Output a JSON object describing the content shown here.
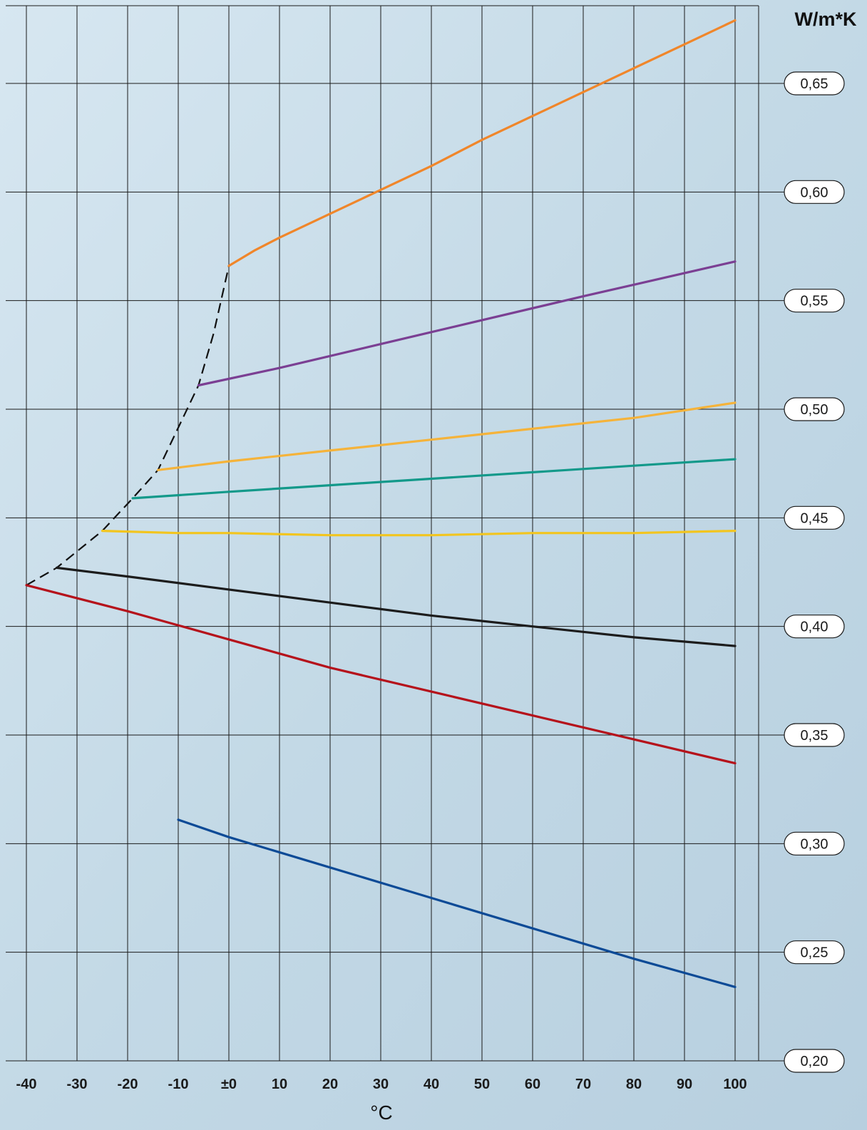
{
  "chart_data": {
    "type": "line",
    "title": "",
    "xlabel": "°C",
    "ylabel": "W/m*K",
    "xlim": [
      -40,
      100
    ],
    "ylim": [
      0.2,
      0.68
    ],
    "grid": true,
    "x_ticks": [
      -40,
      -30,
      -20,
      -10,
      0,
      10,
      20,
      30,
      40,
      50,
      60,
      70,
      80,
      90,
      100
    ],
    "x_tick_labels": [
      "-40",
      "-30",
      "-20",
      "-10",
      "±0",
      "10",
      "20",
      "30",
      "40",
      "50",
      "60",
      "70",
      "80",
      "90",
      "100"
    ],
    "y_ticks": [
      0.2,
      0.25,
      0.3,
      0.35,
      0.4,
      0.45,
      0.5,
      0.55,
      0.6,
      0.65
    ],
    "y_tick_labels": [
      "0,20",
      "0,25",
      "0,30",
      "0,35",
      "0,40",
      "0,45",
      "0,50",
      "0,55",
      "0,60",
      "0,65"
    ],
    "series": [
      {
        "color": "#f0862a",
        "points": [
          [
            0,
            0.566
          ],
          [
            5,
            0.573
          ],
          [
            10,
            0.579
          ],
          [
            20,
            0.59
          ],
          [
            30,
            0.601
          ],
          [
            40,
            0.612
          ],
          [
            50,
            0.624
          ],
          [
            60,
            0.635
          ],
          [
            70,
            0.646
          ],
          [
            80,
            0.657
          ],
          [
            90,
            0.668
          ],
          [
            100,
            0.679
          ]
        ]
      },
      {
        "color": "#7b3f93",
        "points": [
          [
            -6,
            0.511
          ],
          [
            10,
            0.519
          ],
          [
            30,
            0.53
          ],
          [
            50,
            0.541
          ],
          [
            70,
            0.552
          ],
          [
            100,
            0.568
          ]
        ]
      },
      {
        "color": "#f5b33a",
        "points": [
          [
            -14,
            0.472
          ],
          [
            0,
            0.476
          ],
          [
            20,
            0.481
          ],
          [
            40,
            0.486
          ],
          [
            60,
            0.491
          ],
          [
            80,
            0.496
          ],
          [
            100,
            0.503
          ]
        ]
      },
      {
        "color": "#13998a",
        "points": [
          [
            -19,
            0.459
          ],
          [
            0,
            0.462
          ],
          [
            20,
            0.465
          ],
          [
            40,
            0.468
          ],
          [
            60,
            0.471
          ],
          [
            80,
            0.474
          ],
          [
            100,
            0.477
          ]
        ]
      },
      {
        "color": "#f2c51f",
        "points": [
          [
            -25,
            0.444
          ],
          [
            -10,
            0.443
          ],
          [
            0,
            0.443
          ],
          [
            20,
            0.442
          ],
          [
            40,
            0.442
          ],
          [
            60,
            0.443
          ],
          [
            80,
            0.443
          ],
          [
            100,
            0.444
          ]
        ]
      },
      {
        "color": "#1c1c1c",
        "points": [
          [
            -34,
            0.427
          ],
          [
            -20,
            0.423
          ],
          [
            0,
            0.417
          ],
          [
            20,
            0.411
          ],
          [
            40,
            0.405
          ],
          [
            60,
            0.4
          ],
          [
            80,
            0.395
          ],
          [
            100,
            0.391
          ]
        ]
      },
      {
        "color": "#b5121b",
        "points": [
          [
            -40,
            0.419
          ],
          [
            -20,
            0.407
          ],
          [
            0,
            0.394
          ],
          [
            20,
            0.381
          ],
          [
            40,
            0.37
          ],
          [
            60,
            0.359
          ],
          [
            80,
            0.348
          ],
          [
            100,
            0.337
          ]
        ]
      },
      {
        "color": "#0c4a96",
        "points": [
          [
            -10,
            0.311
          ],
          [
            0,
            0.303
          ],
          [
            20,
            0.289
          ],
          [
            40,
            0.275
          ],
          [
            60,
            0.261
          ],
          [
            80,
            0.247
          ],
          [
            100,
            0.234
          ]
        ]
      }
    ],
    "boundary_curve": {
      "color": "#111111",
      "style": "dashed",
      "points": [
        [
          -40,
          0.419
        ],
        [
          -34,
          0.427
        ],
        [
          -25,
          0.444
        ],
        [
          -19,
          0.459
        ],
        [
          -14,
          0.472
        ],
        [
          -6,
          0.511
        ],
        [
          -3,
          0.535
        ],
        [
          0,
          0.566
        ]
      ]
    }
  }
}
